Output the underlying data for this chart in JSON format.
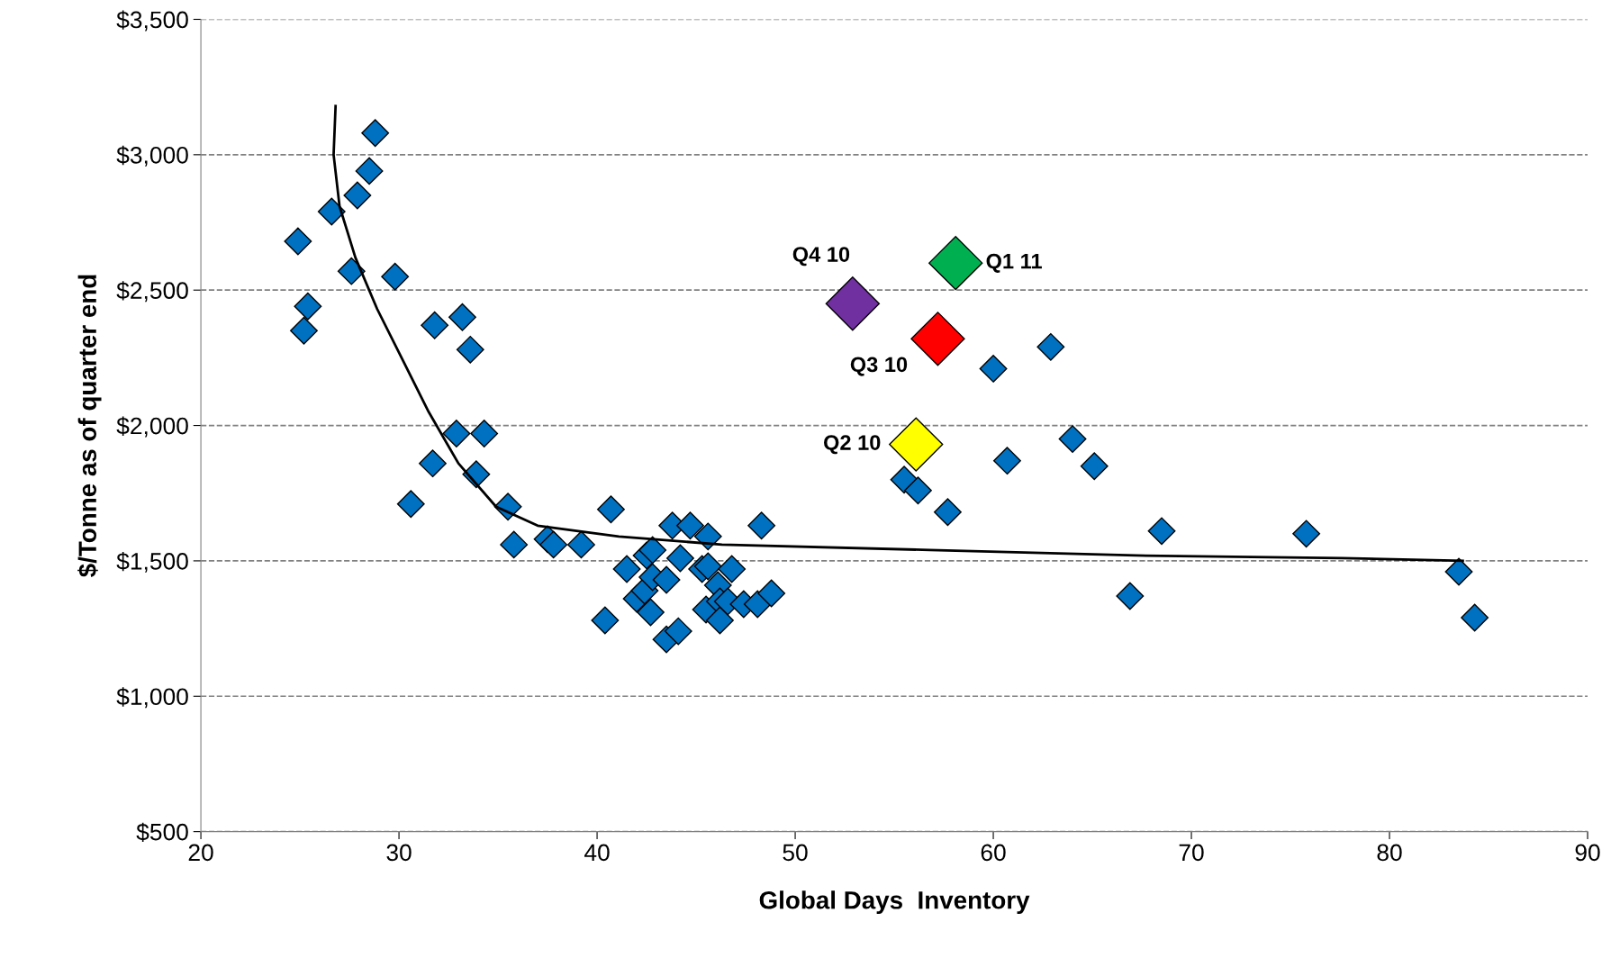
{
  "chart_data": {
    "type": "scatter",
    "xlabel": "Global Days  Inventory",
    "ylabel": "$/Tonne as of quarter end",
    "xlim": [
      20,
      90
    ],
    "xticks": [
      20,
      30,
      40,
      50,
      60,
      70,
      80,
      90
    ],
    "ylim": [
      500,
      3500
    ],
    "yticks": [
      {
        "value": 500,
        "label": "$500"
      },
      {
        "value": 1000,
        "label": "$1,000"
      },
      {
        "value": 1500,
        "label": "$1,500"
      },
      {
        "value": 2000,
        "label": "$2,000"
      },
      {
        "value": 2500,
        "label": "$2,500"
      },
      {
        "value": 3000,
        "label": "$3,000"
      },
      {
        "value": 3500,
        "label": "$3,500"
      }
    ],
    "grid": "y",
    "marker": "diamond",
    "legend": false,
    "series": [
      {
        "color": "#0070c0",
        "x": [
          24.9,
          25.4,
          25.2,
          26.6,
          27.6,
          27.9,
          28.5,
          28.8,
          29.8,
          30.6,
          31.8,
          31.7,
          33.2,
          33.6,
          32.9,
          34.3,
          33.9,
          35.5,
          35.8,
          37.5,
          37.8,
          39.2,
          40.7,
          40.4,
          41.5,
          42.0,
          42.4,
          42.5,
          42.8,
          42.8,
          42.7,
          43.5,
          43.5,
          43.8,
          44.1,
          44.2,
          44.7,
          45.6,
          45.3,
          45.6,
          45.5,
          46.1,
          46.2,
          46.2,
          46.8,
          46.6,
          47.4,
          48.3,
          48.1,
          48.8,
          55.5,
          56.2,
          57.7,
          60.0,
          60.7,
          62.9,
          64.0,
          65.1,
          66.9,
          68.5,
          75.8,
          83.5,
          84.3
        ],
        "values": [
          2680,
          2440,
          2350,
          2790,
          2570,
          2850,
          2940,
          3080,
          2550,
          1710,
          2370,
          1860,
          2400,
          2280,
          1970,
          1970,
          1820,
          1700,
          1560,
          1580,
          1560,
          1560,
          1690,
          1280,
          1470,
          1360,
          1390,
          1520,
          1540,
          1440,
          1310,
          1430,
          1210,
          1630,
          1240,
          1510,
          1630,
          1590,
          1470,
          1480,
          1320,
          1410,
          1350,
          1280,
          1470,
          1350,
          1340,
          1630,
          1340,
          1380,
          1800,
          1760,
          1680,
          2210,
          1870,
          2290,
          1950,
          1850,
          1370,
          1610,
          1600,
          1460,
          1290
        ]
      },
      {
        "type": "line",
        "color": "#000000",
        "marker": "none",
        "x": [
          26.8,
          26.7,
          27.0,
          27.8,
          28.9,
          30.2,
          31.5,
          33.0,
          34.9,
          37.0,
          41.1,
          46.3,
          56.8,
          67.2,
          77.6,
          83.7
        ],
        "values": [
          3180,
          3000,
          2810,
          2620,
          2430,
          2240,
          2050,
          1860,
          1700,
          1630,
          1590,
          1560,
          1540,
          1520,
          1510,
          1500
        ]
      },
      {
        "name": "Q4 10",
        "color": "#7030a0",
        "x": [
          52.9
        ],
        "values": [
          2450
        ]
      },
      {
        "name": "Q1 11",
        "color": "#00b050",
        "x": [
          58.1
        ],
        "values": [
          2600
        ]
      },
      {
        "name": "Q3 10",
        "color": "#ff0000",
        "x": [
          57.2
        ],
        "values": [
          2320
        ]
      },
      {
        "name": "Q2 10",
        "color": "#ffff00",
        "x": [
          56.1
        ],
        "values": [
          1930
        ]
      }
    ]
  }
}
